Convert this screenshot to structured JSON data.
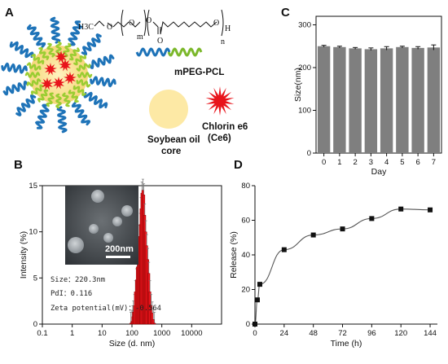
{
  "panels": {
    "A": {
      "letter": "A",
      "formula": {
        "h3c": "H3C",
        "m": "m",
        "n": "n",
        "h": "H"
      },
      "legend": {
        "copolymer": "mPEG-PCL",
        "core_line1": "Soybean oil",
        "core_line2": "core",
        "ce6_line1": "Chlorin e6",
        "ce6_line2": "(Ce6)"
      },
      "colors": {
        "peg": "#1e73b8",
        "pcl": "#9acd32",
        "oil": "#fde9a5",
        "ce6": "#e8141b"
      }
    },
    "B": {
      "letter": "B",
      "inset_scale": "200nm",
      "stats": [
        "Size：220.3nm",
        "PdI：0.116",
        "Zeta potential(mV)：-0.564"
      ]
    },
    "C": {
      "letter": "C"
    },
    "D": {
      "letter": "D"
    }
  },
  "chart_data": [
    {
      "id": "C",
      "type": "bar",
      "categories": [
        "0",
        "1",
        "2",
        "3",
        "4",
        "5",
        "6",
        "7"
      ],
      "values": [
        250,
        248,
        245,
        243,
        245,
        248,
        246,
        247
      ],
      "errors": [
        2,
        2,
        2,
        3,
        4,
        2,
        3,
        6
      ],
      "xlabel": "Day",
      "ylabel": "Size(nm)",
      "ylim": [
        0,
        320
      ],
      "yticks": [
        0,
        100,
        200,
        300
      ],
      "color": "#7f7f7f"
    },
    {
      "id": "B",
      "type": "bar",
      "scale": "log",
      "x": [
        91,
        100,
        106,
        112,
        122,
        130,
        141,
        150,
        164,
        178,
        190,
        200,
        215,
        232,
        250,
        268,
        290,
        312,
        340,
        368,
        400,
        440,
        480,
        520,
        570
      ],
      "values": [
        0.1,
        0.3,
        0.8,
        1.3,
        2.0,
        3.5,
        4.8,
        6.2,
        8.0,
        9.5,
        10.8,
        12.5,
        14.2,
        14.5,
        14.0,
        11.8,
        10.0,
        8.5,
        7.0,
        5.5,
        3.5,
        2.0,
        1.2,
        0.5,
        0.1
      ],
      "xlabel": "Size (d. nm)",
      "ylabel": "Intensity (%)",
      "xticks": [
        "0.1",
        "1",
        "10",
        "100",
        "1000",
        "10000"
      ],
      "ylim": [
        0,
        15
      ],
      "yticks": [
        0,
        5,
        10,
        15
      ],
      "color": "#e8141b"
    },
    {
      "id": "D",
      "type": "line",
      "x": [
        0,
        2,
        4,
        24,
        48,
        72,
        96,
        120,
        144
      ],
      "values": [
        0,
        14,
        23,
        43,
        51.5,
        55,
        61,
        66.5,
        66
      ],
      "xlabel": "Time (h)",
      "ylabel": "Release (%)",
      "xlim": [
        0,
        150
      ],
      "ylim": [
        0,
        80
      ],
      "xticks": [
        0,
        24,
        48,
        72,
        96,
        120,
        144
      ],
      "yticks": [
        0,
        20,
        40,
        60,
        80
      ]
    }
  ]
}
